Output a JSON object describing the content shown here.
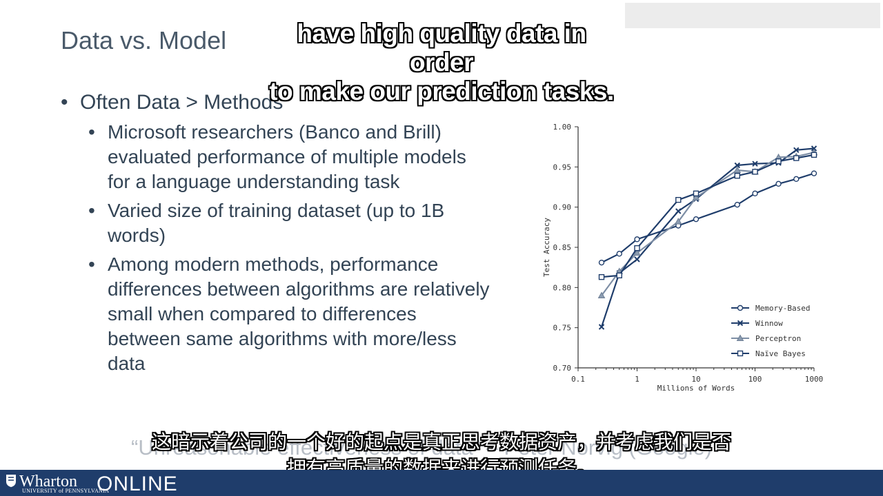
{
  "slide": {
    "title": "Data vs. Model",
    "bullet_main": "Often Data > Methods",
    "sub_bullets": [
      "Microsoft researchers (Banco and Brill) evaluated performance of multiple models for a language understanding task",
      "Varied size of training dataset (up to 1B words)",
      "Among modern methods, performance differences between algorithms are relatively small when compared to differences between same algorithms with more/less data"
    ],
    "quote": "“Unreasonable effectiveness of data” – Peter Norvig (Google)"
  },
  "subtitles": {
    "english_line1": "have high quality data in order",
    "english_line2": "to make our prediction tasks.",
    "chinese_line1": "这暗示着公司的一个好的起点是真正思考数据资产，并考虑我们是否",
    "chinese_line2": "拥有高质量的数据来进行预测任务。"
  },
  "footer": {
    "brand": "Wharton",
    "university": "UNIVERSITY of PENNSYLVANIA",
    "product": "ONLINE",
    "background_color": "#1f3d6b"
  },
  "chart_data": {
    "type": "line",
    "xlabel": "Millions of Words",
    "ylabel": "Test Accuracy",
    "x_scale": "log",
    "xlim": [
      0.1,
      1000
    ],
    "ylim": [
      0.7,
      1.0
    ],
    "x_ticks": [
      "0.1",
      "1",
      "10",
      "100",
      "1000"
    ],
    "y_ticks": [
      "0.70",
      "0.75",
      "0.80",
      "0.85",
      "0.90",
      "0.95",
      "1.00"
    ],
    "legend_position": "lower-right",
    "x": [
      0.25,
      0.5,
      1,
      5,
      10,
      50,
      100,
      250,
      500,
      1000
    ],
    "series": [
      {
        "name": "Memory-Based",
        "marker": "circle",
        "values": [
          0.831,
          0.842,
          0.86,
          0.877,
          0.885,
          0.903,
          0.917,
          0.929,
          0.935,
          0.942
        ]
      },
      {
        "name": "Winnow",
        "marker": "x",
        "values": [
          0.751,
          0.818,
          0.835,
          0.895,
          0.91,
          0.952,
          0.954,
          0.955,
          0.971,
          0.973
        ]
      },
      {
        "name": "Perceptron",
        "marker": "triangle",
        "values": [
          0.79,
          0.82,
          0.843,
          0.882,
          0.912,
          0.946,
          0.944,
          0.962,
          0.963,
          0.968
        ]
      },
      {
        "name": "Naïve Bayes",
        "marker": "square",
        "values": [
          0.813,
          0.815,
          0.849,
          0.909,
          0.917,
          0.939,
          0.944,
          0.957,
          0.961,
          0.965
        ]
      }
    ]
  }
}
